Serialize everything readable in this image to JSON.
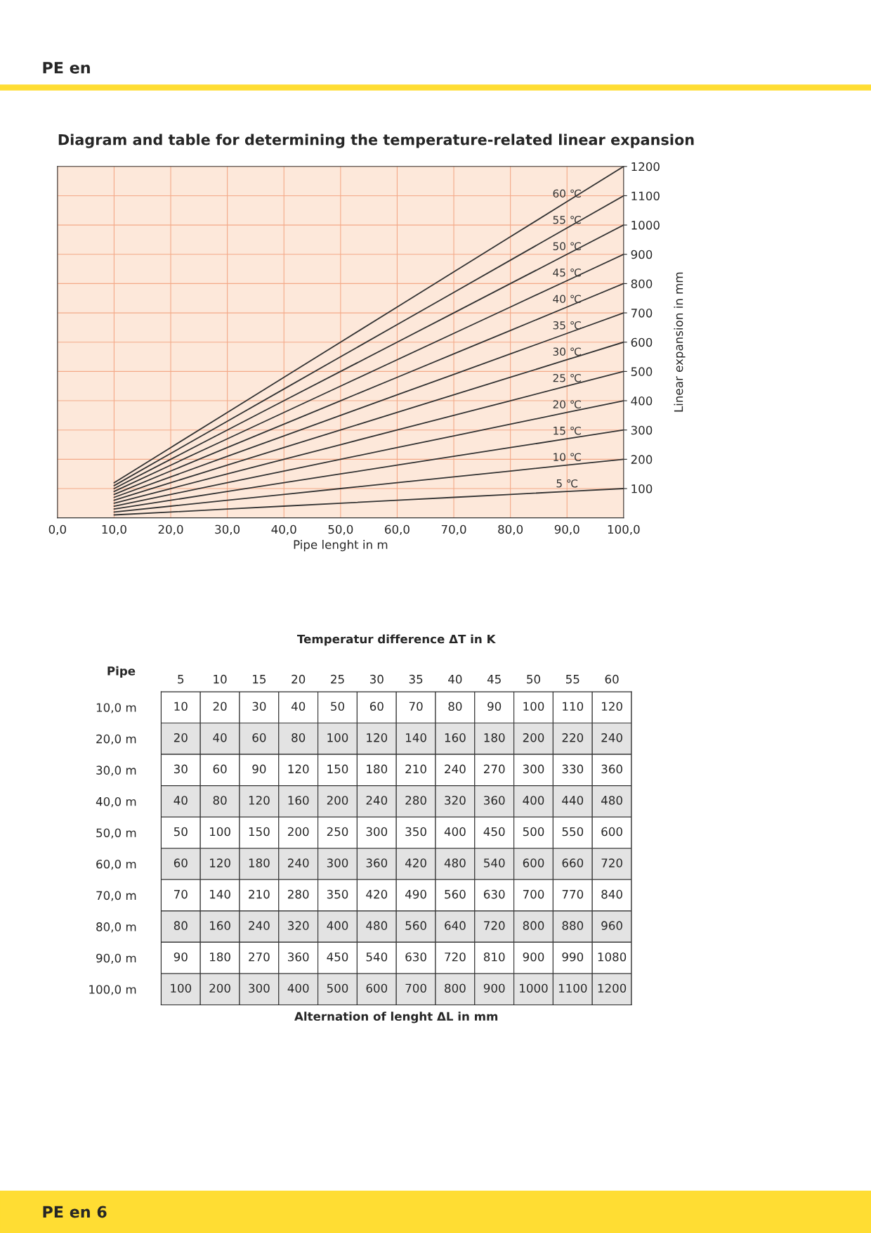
{
  "chart_data": [
    {
      "type": "line",
      "title": "Diagram and table for determining the temperature-related linear expansion",
      "xlabel": "Pipe lenght in m",
      "ylabel": "Linear expansion in mm",
      "x": [
        10,
        20,
        30,
        40,
        50,
        60,
        70,
        80,
        90,
        100
      ],
      "xlim": [
        0,
        100
      ],
      "xticks": [
        {
          "value": 0,
          "label": "0,0"
        },
        {
          "value": 10,
          "label": "10,0"
        },
        {
          "value": 20,
          "label": "20,0"
        },
        {
          "value": 30,
          "label": "30,0"
        },
        {
          "value": 40,
          "label": "40,0"
        },
        {
          "value": 50,
          "label": "50,0"
        },
        {
          "value": 60,
          "label": "60,0"
        },
        {
          "value": 70,
          "label": "70,0"
        },
        {
          "value": 80,
          "label": "80,0"
        },
        {
          "value": 90,
          "label": "90,0"
        },
        {
          "value": 100,
          "label": "100,0"
        }
      ],
      "ylim": [
        0,
        1200
      ],
      "yticks": [
        100,
        200,
        300,
        400,
        500,
        600,
        700,
        800,
        900,
        1000,
        1100,
        1200
      ],
      "grid": true,
      "marker": "none",
      "line_style": "solid",
      "series": [
        {
          "name": "5 ℃",
          "color": "#333333",
          "values": [
            10,
            20,
            30,
            40,
            50,
            60,
            70,
            80,
            90,
            100
          ]
        },
        {
          "name": "10 ℃",
          "color": "#333333",
          "values": [
            20,
            40,
            60,
            80,
            100,
            120,
            140,
            160,
            180,
            200
          ]
        },
        {
          "name": "15 ℃",
          "color": "#333333",
          "values": [
            30,
            60,
            90,
            120,
            150,
            180,
            210,
            240,
            270,
            300
          ]
        },
        {
          "name": "20 ℃",
          "color": "#333333",
          "values": [
            40,
            80,
            120,
            160,
            200,
            240,
            280,
            320,
            360,
            400
          ]
        },
        {
          "name": "25 ℃",
          "color": "#333333",
          "values": [
            50,
            100,
            150,
            200,
            250,
            300,
            350,
            400,
            450,
            500
          ]
        },
        {
          "name": "30 ℃",
          "color": "#333333",
          "values": [
            60,
            120,
            180,
            240,
            300,
            360,
            420,
            480,
            540,
            600
          ]
        },
        {
          "name": "35 ℃",
          "color": "#333333",
          "values": [
            70,
            140,
            210,
            280,
            350,
            420,
            490,
            560,
            630,
            700
          ]
        },
        {
          "name": "40 ℃",
          "color": "#333333",
          "values": [
            80,
            160,
            240,
            320,
            400,
            480,
            560,
            640,
            720,
            800
          ]
        },
        {
          "name": "45 ℃",
          "color": "#333333",
          "values": [
            90,
            180,
            270,
            360,
            450,
            540,
            630,
            720,
            810,
            900
          ]
        },
        {
          "name": "50 ℃",
          "color": "#333333",
          "values": [
            100,
            200,
            300,
            400,
            500,
            600,
            700,
            800,
            900,
            1000
          ]
        },
        {
          "name": "55 ℃",
          "color": "#333333",
          "values": [
            110,
            220,
            330,
            440,
            550,
            660,
            770,
            880,
            990,
            1100
          ]
        },
        {
          "name": "60 ℃",
          "color": "#333333",
          "values": [
            120,
            240,
            360,
            480,
            600,
            720,
            840,
            960,
            1080,
            1200
          ]
        }
      ],
      "annotations": [
        "PE en",
        "PE en 6"
      ]
    },
    {
      "type": "heatmap",
      "xlabel": "Temperatur difference ΔT in K",
      "ylabel": "Pipe",
      "data_labels": true,
      "categories": [
        "5",
        "10",
        "15",
        "20",
        "25",
        "30",
        "35",
        "40",
        "45",
        "50",
        "55",
        "60"
      ],
      "y_categories": [
        "10,0 m",
        "20,0 m",
        "30,0 m",
        "40,0 m",
        "50,0 m",
        "60,0 m",
        "70,0 m",
        "80,0 m",
        "90,0 m",
        "100,0 m"
      ],
      "cells": [
        [
          10,
          20,
          30,
          40,
          50,
          60,
          70,
          80,
          90,
          100,
          110,
          120
        ],
        [
          20,
          40,
          60,
          80,
          100,
          120,
          140,
          160,
          180,
          200,
          220,
          240
        ],
        [
          30,
          60,
          90,
          120,
          150,
          180,
          210,
          240,
          270,
          300,
          330,
          360
        ],
        [
          40,
          80,
          120,
          160,
          200,
          240,
          280,
          320,
          360,
          400,
          440,
          480
        ],
        [
          50,
          100,
          150,
          200,
          250,
          300,
          350,
          400,
          450,
          500,
          550,
          600
        ],
        [
          60,
          120,
          180,
          240,
          300,
          360,
          420,
          480,
          540,
          600,
          660,
          720
        ],
        [
          70,
          140,
          210,
          280,
          350,
          420,
          490,
          560,
          630,
          700,
          770,
          840
        ],
        [
          80,
          160,
          240,
          320,
          400,
          480,
          560,
          640,
          720,
          800,
          880,
          960
        ],
        [
          90,
          180,
          270,
          360,
          450,
          540,
          630,
          720,
          810,
          900,
          990,
          1080
        ],
        [
          100,
          200,
          300,
          400,
          500,
          600,
          700,
          800,
          900,
          1000,
          1100,
          1200
        ]
      ],
      "annotations": [
        "Alternation of lenght ΔL in mm"
      ]
    }
  ]
}
